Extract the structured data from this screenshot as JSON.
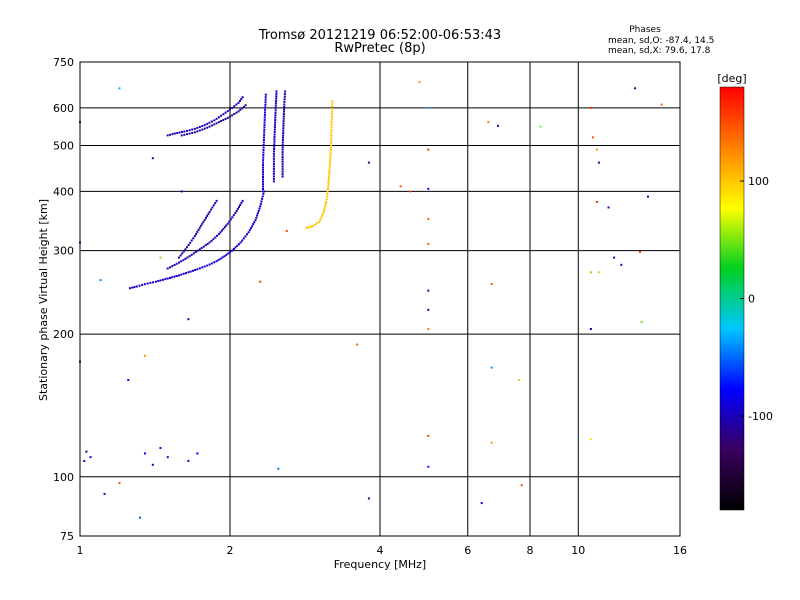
{
  "chart_data": {
    "type": "scatter",
    "title": "Tromsø 20121219 06:52:00-06:53:43",
    "subtitle": "RwPretec (8p)",
    "xlabel": "Frequency [MHz]",
    "ylabel": "Stationary phase Virtual Height [km]",
    "x_scale": "log",
    "y_scale": "log",
    "xlim": [
      1,
      16
    ],
    "ylim": [
      75,
      750
    ],
    "x_ticks": [
      1,
      2,
      4,
      6,
      8,
      10,
      16
    ],
    "x_tick_labels": [
      "1",
      "2",
      "4",
      "6",
      "8",
      "10",
      "16"
    ],
    "y_ticks": [
      75,
      100,
      200,
      300,
      400,
      500,
      600,
      750
    ],
    "y_tick_labels": [
      "75",
      "100",
      "200",
      "300",
      "400",
      "500",
      "600",
      "750"
    ],
    "x_grid": [
      2,
      4,
      6,
      8,
      10
    ],
    "y_grid": [
      100,
      200,
      300,
      400,
      500,
      600
    ],
    "stats": {
      "heading": "Phases",
      "line_o": "mean, sd,O: -87.4, 14.5",
      "line_x": "mean, sd,X:  79.6, 17.8"
    },
    "colorbar": {
      "label": "[deg]",
      "min": -180,
      "max": 180,
      "ticks": [
        -100,
        0,
        100
      ],
      "tick_labels": [
        "-100",
        "0",
        "100"
      ],
      "colors": [
        "#000000",
        "#3a0060",
        "#0000ff",
        "#00c8ff",
        "#00d020",
        "#ffff00",
        "#ff8000",
        "#ff0000"
      ]
    },
    "traces": [
      {
        "phase": -95,
        "points": [
          [
            1.26,
            250
          ],
          [
            1.3,
            252
          ],
          [
            1.35,
            255
          ],
          [
            1.42,
            258
          ],
          [
            1.5,
            262
          ],
          [
            1.58,
            266
          ],
          [
            1.65,
            270
          ],
          [
            1.72,
            274
          ],
          [
            1.8,
            279
          ],
          [
            1.88,
            285
          ],
          [
            1.95,
            292
          ],
          [
            2.02,
            300
          ],
          [
            2.1,
            312
          ],
          [
            2.18,
            328
          ],
          [
            2.25,
            348
          ],
          [
            2.3,
            372
          ],
          [
            2.34,
            400
          ]
        ]
      },
      {
        "phase": -100,
        "points": [
          [
            1.5,
            275
          ],
          [
            1.58,
            283
          ],
          [
            1.66,
            292
          ],
          [
            1.74,
            302
          ],
          [
            1.82,
            312
          ],
          [
            1.9,
            325
          ],
          [
            1.98,
            342
          ],
          [
            2.05,
            360
          ],
          [
            2.12,
            382
          ]
        ]
      },
      {
        "phase": -105,
        "points": [
          [
            1.58,
            290
          ],
          [
            1.64,
            305
          ],
          [
            1.7,
            322
          ],
          [
            1.76,
            342
          ],
          [
            1.82,
            362
          ],
          [
            1.88,
            382
          ]
        ]
      },
      {
        "phase": -100,
        "points": [
          [
            1.5,
            525
          ],
          [
            1.55,
            530
          ],
          [
            1.62,
            535
          ],
          [
            1.7,
            542
          ],
          [
            1.78,
            552
          ],
          [
            1.86,
            565
          ],
          [
            1.94,
            582
          ],
          [
            2.02,
            600
          ],
          [
            2.08,
            615
          ],
          [
            2.12,
            632
          ]
        ]
      },
      {
        "phase": -110,
        "points": [
          [
            1.6,
            525
          ],
          [
            1.7,
            533
          ],
          [
            1.8,
            545
          ],
          [
            1.9,
            560
          ],
          [
            2,
            575
          ],
          [
            2.08,
            590
          ],
          [
            2.15,
            608
          ]
        ]
      },
      {
        "phase": -90,
        "points": [
          [
            2.33,
            400
          ],
          [
            2.33,
            460
          ],
          [
            2.34,
            520
          ],
          [
            2.35,
            580
          ],
          [
            2.36,
            640
          ]
        ]
      },
      {
        "phase": -95,
        "points": [
          [
            2.45,
            420
          ],
          [
            2.45,
            480
          ],
          [
            2.46,
            540
          ],
          [
            2.47,
            600
          ],
          [
            2.48,
            650
          ]
        ]
      },
      {
        "phase": -100,
        "points": [
          [
            2.55,
            430
          ],
          [
            2.55,
            490
          ],
          [
            2.56,
            550
          ],
          [
            2.57,
            610
          ],
          [
            2.58,
            650
          ]
        ]
      },
      {
        "phase": 100,
        "points": [
          [
            2.85,
            335
          ],
          [
            2.93,
            338
          ],
          [
            3.02,
            345
          ],
          [
            3.08,
            360
          ],
          [
            3.12,
            380
          ],
          [
            3.15,
            410
          ],
          [
            3.17,
            450
          ],
          [
            3.19,
            500
          ],
          [
            3.2,
            560
          ],
          [
            3.21,
            620
          ]
        ]
      }
    ],
    "points": [
      {
        "x": 1.03,
        "y": 113,
        "phase": -100
      },
      {
        "x": 1.05,
        "y": 110,
        "phase": -95
      },
      {
        "x": 1.02,
        "y": 108,
        "phase": -90
      },
      {
        "x": 1.35,
        "y": 112,
        "phase": -80
      },
      {
        "x": 1.4,
        "y": 106,
        "phase": -100
      },
      {
        "x": 1.45,
        "y": 115,
        "phase": -95
      },
      {
        "x": 1.5,
        "y": 110,
        "phase": -110
      },
      {
        "x": 1.65,
        "y": 108,
        "phase": -100
      },
      {
        "x": 1.72,
        "y": 112,
        "phase": -85
      },
      {
        "x": 1.1,
        "y": 260,
        "phase": -40
      },
      {
        "x": 1.25,
        "y": 160,
        "phase": -80
      },
      {
        "x": 1.35,
        "y": 180,
        "phase": 120
      },
      {
        "x": 1.2,
        "y": 660,
        "phase": -30
      },
      {
        "x": 1.4,
        "y": 470,
        "phase": -110
      },
      {
        "x": 1.45,
        "y": 290,
        "phase": 50
      },
      {
        "x": 1.6,
        "y": 400,
        "phase": -95
      },
      {
        "x": 3.8,
        "y": 460,
        "phase": -110
      },
      {
        "x": 4.4,
        "y": 410,
        "phase": 150
      },
      {
        "x": 4.6,
        "y": 400,
        "phase": 150
      },
      {
        "x": 4.8,
        "y": 680,
        "phase": 120
      },
      {
        "x": 5.0,
        "y": 600,
        "phase": -30
      },
      {
        "x": 5.0,
        "y": 490,
        "phase": 160
      },
      {
        "x": 5.0,
        "y": 405,
        "phase": -80
      },
      {
        "x": 5.0,
        "y": 350,
        "phase": 140
      },
      {
        "x": 5.0,
        "y": 310,
        "phase": 140
      },
      {
        "x": 5.0,
        "y": 247,
        "phase": -110
      },
      {
        "x": 5.0,
        "y": 225,
        "phase": -110
      },
      {
        "x": 5.0,
        "y": 205,
        "phase": 130
      },
      {
        "x": 5.0,
        "y": 122,
        "phase": 160
      },
      {
        "x": 5.0,
        "y": 105,
        "phase": -70
      },
      {
        "x": 3.6,
        "y": 190,
        "phase": 140
      },
      {
        "x": 3.8,
        "y": 90,
        "phase": -120
      },
      {
        "x": 2.5,
        "y": 104,
        "phase": -50
      },
      {
        "x": 2.3,
        "y": 258,
        "phase": 160
      },
      {
        "x": 2.6,
        "y": 330,
        "phase": 150
      },
      {
        "x": 6.4,
        "y": 88,
        "phase": -80
      },
      {
        "x": 6.6,
        "y": 560,
        "phase": 130
      },
      {
        "x": 6.9,
        "y": 550,
        "phase": -110
      },
      {
        "x": 6.7,
        "y": 255,
        "phase": 150
      },
      {
        "x": 6.7,
        "y": 170,
        "phase": -40
      },
      {
        "x": 6.7,
        "y": 118,
        "phase": 120
      },
      {
        "x": 7.6,
        "y": 160,
        "phase": 60
      },
      {
        "x": 7.7,
        "y": 96,
        "phase": 150
      },
      {
        "x": 8.4,
        "y": 548,
        "phase": 50
      },
      {
        "x": 10.6,
        "y": 600,
        "phase": 160
      },
      {
        "x": 10.7,
        "y": 520,
        "phase": 150
      },
      {
        "x": 10.9,
        "y": 490,
        "phase": 120
      },
      {
        "x": 11.0,
        "y": 460,
        "phase": -110
      },
      {
        "x": 10.9,
        "y": 380,
        "phase": 160
      },
      {
        "x": 11.5,
        "y": 370,
        "phase": -110
      },
      {
        "x": 10.6,
        "y": 270,
        "phase": 50
      },
      {
        "x": 11.0,
        "y": 270,
        "phase": 60
      },
      {
        "x": 11.8,
        "y": 290,
        "phase": -110
      },
      {
        "x": 12.2,
        "y": 280,
        "phase": -110
      },
      {
        "x": 10.6,
        "y": 205,
        "phase": -100
      },
      {
        "x": 10.6,
        "y": 120,
        "phase": 90
      },
      {
        "x": 13.0,
        "y": 660,
        "phase": -110
      },
      {
        "x": 13.8,
        "y": 390,
        "phase": -110
      },
      {
        "x": 13.3,
        "y": 298,
        "phase": 150
      },
      {
        "x": 13.4,
        "y": 212,
        "phase": 50
      },
      {
        "x": 14.7,
        "y": 610,
        "phase": 140
      },
      {
        "x": 1.12,
        "y": 92,
        "phase": -100
      },
      {
        "x": 1.2,
        "y": 97,
        "phase": 150
      },
      {
        "x": 1.32,
        "y": 82,
        "phase": -60
      },
      {
        "x": 1.65,
        "y": 215,
        "phase": -110
      },
      {
        "x": 1.0,
        "y": 560,
        "phase": -90
      },
      {
        "x": 1.0,
        "y": 175,
        "phase": -90
      },
      {
        "x": 1.0,
        "y": 312,
        "phase": -80
      }
    ]
  }
}
